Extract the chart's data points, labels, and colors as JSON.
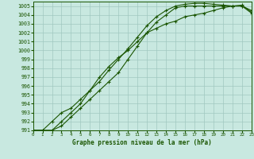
{
  "title": "Graphe pression niveau de la mer (hPa)",
  "bg_color": "#c8e8e0",
  "grid_color": "#a0c8c0",
  "line_color": "#1a5500",
  "xlim": [
    0,
    23
  ],
  "ylim": [
    991,
    1005.5
  ],
  "xticks": [
    0,
    1,
    2,
    3,
    4,
    5,
    6,
    7,
    8,
    9,
    10,
    11,
    12,
    13,
    14,
    15,
    16,
    17,
    18,
    19,
    20,
    21,
    22,
    23
  ],
  "yticks": [
    991,
    992,
    993,
    994,
    995,
    996,
    997,
    998,
    999,
    1000,
    1001,
    1002,
    1003,
    1004,
    1005
  ],
  "line1_x": [
    0,
    1,
    2,
    3,
    4,
    5,
    6,
    7,
    8,
    9,
    10,
    11,
    12,
    13,
    14,
    15,
    16,
    17,
    18,
    19,
    20,
    21,
    22,
    23
  ],
  "line1_y": [
    991,
    991,
    991,
    991.5,
    992.5,
    993.5,
    994.5,
    995.5,
    996.5,
    997.5,
    999,
    1000.5,
    1002,
    1003.2,
    1004,
    1004.8,
    1005,
    1005,
    1005,
    1005,
    1005,
    1005,
    1005,
    1004.2
  ],
  "line2_x": [
    0,
    1,
    2,
    3,
    4,
    5,
    6,
    7,
    8,
    9,
    10,
    11,
    12,
    13,
    14,
    15,
    16,
    17,
    18,
    19,
    20,
    21,
    22,
    23
  ],
  "line2_y": [
    991,
    991,
    992,
    993,
    993.5,
    994.5,
    995.5,
    996.5,
    997.8,
    999,
    1000.2,
    1001.5,
    1002.8,
    1003.8,
    1004.5,
    1005,
    1005.2,
    1005.3,
    1005.3,
    1005.2,
    1005.1,
    1005,
    1005,
    1004.5
  ],
  "line3_x": [
    0,
    2,
    3,
    4,
    5,
    6,
    7,
    8,
    9,
    10,
    11,
    12,
    13,
    14,
    15,
    16,
    17,
    18,
    19,
    20,
    21,
    22,
    23
  ],
  "line3_y": [
    991,
    991,
    992,
    993,
    994,
    995.5,
    997,
    998.2,
    999.2,
    1000,
    1001,
    1002,
    1002.5,
    1003,
    1003.3,
    1003.8,
    1004,
    1004.2,
    1004.5,
    1004.8,
    1005,
    1005.1,
    1004.3
  ]
}
